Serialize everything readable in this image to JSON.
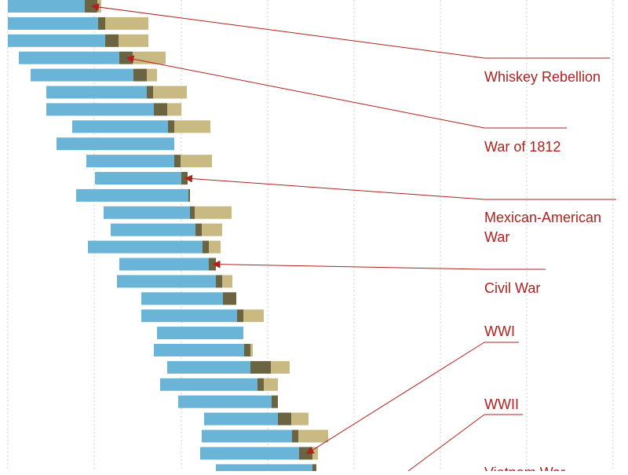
{
  "colors": {
    "service": "#6ab4d8",
    "war_service": "#6b6443",
    "post_service": "#c9b983",
    "annotation": "#b0201c",
    "gridline": "#cccccc"
  },
  "chart_data": {
    "type": "bar",
    "orientation": "horizontal",
    "stacked": true,
    "floating": true,
    "grid": true,
    "grid_style": "dotted vertical",
    "series": [
      {
        "segment": "first",
        "color": "#6ab4d8",
        "bars": [
          {
            "start": 0.0,
            "end": 98.0
          },
          {
            "start": 0.0,
            "end": 115.0
          },
          {
            "start": 0.0,
            "end": 124.0
          },
          {
            "start": 14.0,
            "end": 142.0
          },
          {
            "start": 29.0,
            "end": 160.0
          },
          {
            "start": 49.0,
            "end": 177.0
          },
          {
            "start": 49.0,
            "end": 186.0
          },
          {
            "start": 82.0,
            "end": 204.0
          },
          {
            "start": 62.0,
            "end": 212.0
          },
          {
            "start": 100.0,
            "end": 212.0
          },
          {
            "start": 111.0,
            "end": 221.0
          },
          {
            "start": 87.0,
            "end": 230.0
          },
          {
            "start": 122.0,
            "end": 232.0
          },
          {
            "start": 131.0,
            "end": 239.0
          },
          {
            "start": 102.0,
            "end": 248.0
          },
          {
            "start": 142.0,
            "end": 256.0
          },
          {
            "start": 139.0,
            "end": 265.0
          },
          {
            "start": 170.0,
            "end": 274.0
          },
          {
            "start": 170.0,
            "end": 292.0
          },
          {
            "start": 190.0,
            "end": 300.0
          },
          {
            "start": 186.0,
            "end": 301.0
          },
          {
            "start": 203.0,
            "end": 309.0
          },
          {
            "start": 194.0,
            "end": 318.0
          },
          {
            "start": 217.0,
            "end": 336.0
          },
          {
            "start": 250.0,
            "end": 344.0
          },
          {
            "start": 247.0,
            "end": 362.0
          },
          {
            "start": 245.0,
            "end": 371.0
          },
          {
            "start": 265.0,
            "end": 388.0
          }
        ]
      },
      {
        "segment": "middle",
        "color": "#6b6443",
        "values": [
          16,
          9,
          17,
          17,
          17,
          8,
          17,
          8,
          0,
          8,
          8,
          2,
          6,
          8,
          8,
          9,
          8,
          17,
          8,
          0,
          8,
          26,
          8,
          8,
          17,
          8,
          17,
          5
        ]
      },
      {
        "segment": "last",
        "color": "#c9b983",
        "values": [
          5,
          55,
          38,
          42,
          13,
          43,
          18,
          46,
          0,
          40,
          0,
          0,
          47,
          26,
          15,
          0,
          13,
          0,
          26,
          0,
          3,
          24,
          18,
          0,
          22,
          38,
          7,
          0
        ]
      }
    ],
    "annotations": [
      {
        "label": "Whiskey Rebellion",
        "bar_index": 0
      },
      {
        "label": "War of 1812",
        "bar_index": 3
      },
      {
        "label": "Mexican-American War",
        "bar_index": 10
      },
      {
        "label": "Civil War",
        "bar_index": 15
      },
      {
        "label": "WWI",
        "bar_index": 26
      },
      {
        "label": "WWII",
        "bar_index": null
      },
      {
        "label": "Vietnam War",
        "bar_index": null
      }
    ]
  }
}
